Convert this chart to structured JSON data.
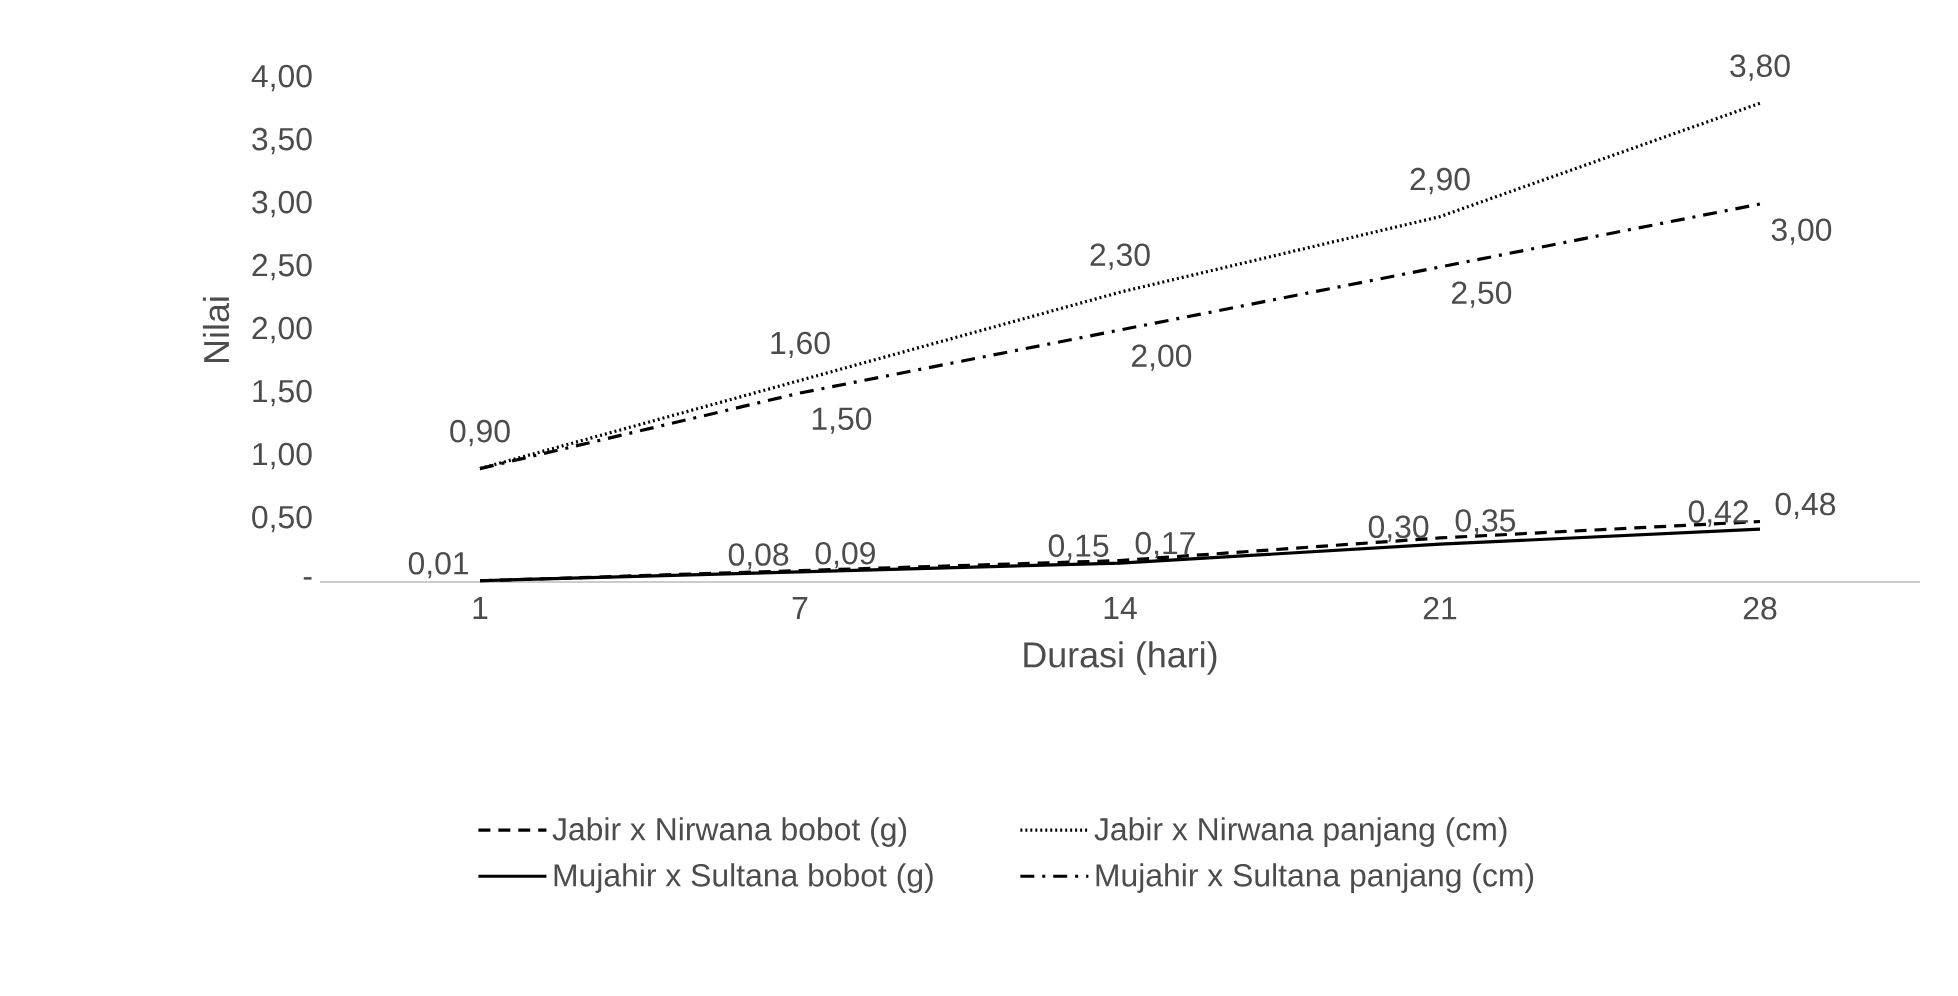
{
  "chart_data": {
    "type": "line",
    "xlabel": "Durasi (hari)",
    "ylabel": "Nilai",
    "categories": [
      "1",
      "7",
      "14",
      "21",
      "28"
    ],
    "ylim": [
      0,
      4
    ],
    "yticks": [
      {
        "value": 0,
        "label": "-"
      },
      {
        "value": 0.5,
        "label": "0,50"
      },
      {
        "value": 1,
        "label": "1,00"
      },
      {
        "value": 1.5,
        "label": "1,50"
      },
      {
        "value": 2,
        "label": "2,00"
      },
      {
        "value": 2.5,
        "label": "2,50"
      },
      {
        "value": 3,
        "label": "3,00"
      },
      {
        "value": 3.5,
        "label": "3,50"
      },
      {
        "value": 4,
        "label": "4,00"
      }
    ],
    "legend": "bottom",
    "marker": "none",
    "series": [
      {
        "name": "Jabir x Nirwana  bobot (g)",
        "color": "#000000",
        "line_style": "dashed",
        "values": [
          0.01,
          0.09,
          0.17,
          0.35,
          0.48
        ],
        "value_labels": [
          null,
          "0,09",
          "0,17",
          "0,35",
          "0,48"
        ]
      },
      {
        "name": "Jabir x Nirwana  panjang (cm)",
        "color": "#000000",
        "line_style": "dotted",
        "values": [
          0.9,
          1.6,
          2.3,
          2.9,
          3.8
        ],
        "value_labels": [
          "0,90",
          "1,60",
          "2,30",
          "2,90",
          "3,80"
        ]
      },
      {
        "name": "Mujahir x Sultana  bobot (g)",
        "color": "#000000",
        "line_style": "solid",
        "values": [
          0.01,
          0.08,
          0.15,
          0.3,
          0.42
        ],
        "value_labels": [
          "0,01",
          "0,08",
          "0,15",
          "0,30",
          "0,42"
        ]
      },
      {
        "name": "Mujahir x Sultana  panjang (cm)",
        "color": "#000000",
        "line_style": "dashdot",
        "values": [
          0.9,
          1.5,
          2.0,
          2.5,
          3.0
        ],
        "value_labels": [
          null,
          "1,50",
          "2,00",
          "2,50",
          "3,00"
        ]
      }
    ]
  }
}
